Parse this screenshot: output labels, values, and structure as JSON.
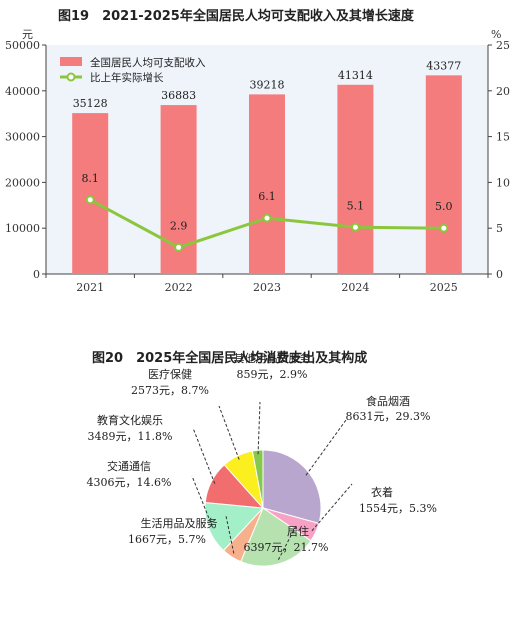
{
  "chart_data": [
    {
      "type": "bar",
      "title": "图19　2021-2025年全国居民人均可支配收入及其增长速度",
      "ylabel_left": "元",
      "ylabel_right": "%",
      "categories": [
        "2021",
        "2022",
        "2023",
        "2024",
        "2025"
      ],
      "ylim_left": [
        0,
        50000
      ],
      "yticks_left": [
        "0",
        "10000",
        "20000",
        "30000",
        "40000",
        "50000"
      ],
      "ylim_right": [
        0,
        25
      ],
      "yticks_right": [
        "0",
        "5",
        "10",
        "15",
        "20",
        "25"
      ],
      "series": [
        {
          "name": "全国居民人均可支配收入",
          "type": "bar",
          "axis": "left",
          "color": "#f47c7c",
          "values": [
            35128,
            36883,
            39218,
            41314,
            43377
          ],
          "labels": [
            "35128",
            "36883",
            "39218",
            "41314",
            "43377"
          ]
        },
        {
          "name": "比上年实际增长",
          "type": "line",
          "axis": "right",
          "color": "#8cc63f",
          "values": [
            8.1,
            2.9,
            6.1,
            5.1,
            5.0
          ],
          "labels": [
            "8.1",
            "2.9",
            "6.1",
            "5.1",
            "5.0"
          ]
        }
      ],
      "legend": "top-left",
      "grid": false
    },
    {
      "type": "pie",
      "title": "图20　2025年全国居民人均消费支出及其构成",
      "slices": [
        {
          "name": "食品烟酒",
          "value": 8631,
          "label": "8631元，29.3%",
          "color": "#b9a6cf"
        },
        {
          "name": "衣着",
          "value": 1554,
          "label": "1554元，5.3%",
          "color": "#f7a1c4"
        },
        {
          "name": "居住",
          "value": 6397,
          "label": "6397元，21.7%",
          "color": "#b6e2b0"
        },
        {
          "name": "生活用品及服务",
          "value": 1667,
          "label": "1667元，5.7%",
          "color": "#f7b08c"
        },
        {
          "name": "交通通信",
          "value": 4306,
          "label": "4306元，14.6%",
          "color": "#a3f0c8"
        },
        {
          "name": "教育文化娱乐",
          "value": 3489,
          "label": "3489元，11.8%",
          "color": "#f26d6d"
        },
        {
          "name": "医疗保健",
          "value": 2573,
          "label": "2573元，8.7%",
          "color": "#fbef1f"
        },
        {
          "name": "其他用品及服务",
          "value": 859,
          "label": "859元，2.9%",
          "color": "#86c84e"
        }
      ]
    }
  ]
}
